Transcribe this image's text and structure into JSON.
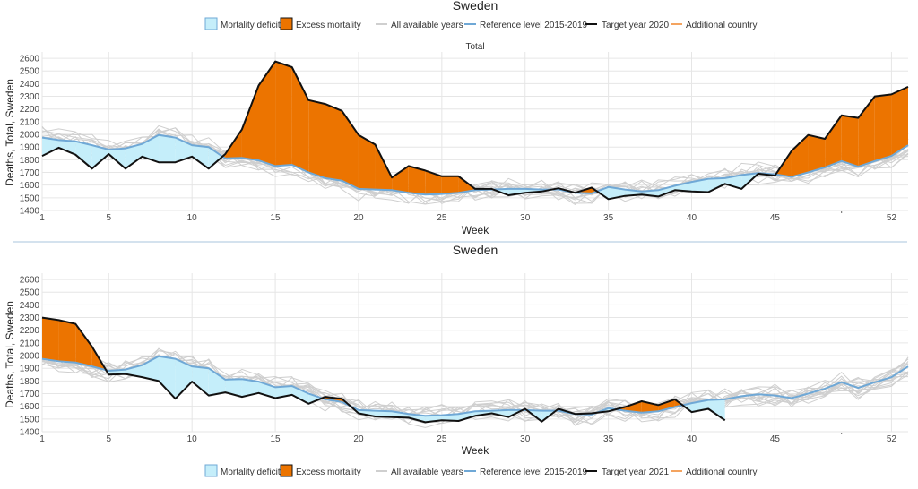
{
  "colors": {
    "deficit": "#c5eefa",
    "excess": "#ec7400",
    "all_years": "#cfcfcf",
    "reference": "#6fa8d6",
    "target": "#111111",
    "additional": "#f4a460",
    "divider": "#a9c4de"
  },
  "chart_data": [
    {
      "type": "line",
      "title": "Sweden",
      "subtitle": "Total",
      "xlabel": "Week",
      "ylabel": "Deaths, Total, Sweden",
      "xlim": [
        1,
        53
      ],
      "ylim": [
        1400,
        2650
      ],
      "x_ticks": [
        "1",
        "5",
        "10",
        "15",
        "20",
        "25",
        "30",
        "35",
        "40",
        "45",
        "52"
      ],
      "y_ticks": [
        "1400",
        "1500",
        "1600",
        "1700",
        "1800",
        "1900",
        "2000",
        "2100",
        "2200",
        "2300",
        "2400",
        "2500",
        "2600"
      ],
      "grid": true,
      "legend": {
        "position": "top",
        "entries": [
          "Mortality deficit",
          "Excess mortality",
          "All available years",
          "Reference level 2015-2019",
          "Target year 2020",
          "Additional country"
        ]
      },
      "series": [
        {
          "name": "Reference level 2015-2019",
          "values": [
            1975,
            1955,
            1945,
            1915,
            1880,
            1890,
            1925,
            1995,
            1975,
            1915,
            1900,
            1810,
            1815,
            1795,
            1750,
            1760,
            1700,
            1655,
            1635,
            1570,
            1565,
            1560,
            1540,
            1525,
            1530,
            1540,
            1560,
            1565,
            1570,
            1570,
            1565,
            1565,
            1540,
            1535,
            1585,
            1565,
            1550,
            1560,
            1595,
            1625,
            1650,
            1655,
            1680,
            1695,
            1685,
            1665,
            1700,
            1740,
            1790,
            1745,
            1790,
            1830,
            1915
          ]
        },
        {
          "name": "Target year 2020",
          "values": [
            1830,
            1895,
            1840,
            1730,
            1845,
            1730,
            1825,
            1780,
            1780,
            1825,
            1730,
            1845,
            2040,
            2385,
            2575,
            2530,
            2270,
            2240,
            2185,
            1995,
            1920,
            1660,
            1750,
            1715,
            1670,
            1670,
            1570,
            1570,
            1520,
            1540,
            1550,
            1575,
            1540,
            1580,
            1490,
            1515,
            1525,
            1510,
            1560,
            1550,
            1545,
            1610,
            1570,
            1690,
            1675,
            1870,
            1995,
            1965,
            2150,
            2130,
            2300,
            2315,
            2375
          ]
        }
      ]
    },
    {
      "type": "line",
      "title": "Sweden",
      "xlabel": "Week",
      "ylabel": "Deaths, Total, Sweden",
      "xlim": [
        1,
        53
      ],
      "ylim": [
        1400,
        2650
      ],
      "x_ticks": [
        "1",
        "5",
        "10",
        "15",
        "20",
        "25",
        "30",
        "35",
        "40",
        "45",
        "52"
      ],
      "y_ticks": [
        "1400",
        "1500",
        "1600",
        "1700",
        "1800",
        "1900",
        "2000",
        "2100",
        "2200",
        "2300",
        "2400",
        "2500",
        "2600"
      ],
      "grid": true,
      "legend": {
        "position": "bottom",
        "entries": [
          "Mortality deficit",
          "Excess mortality",
          "All available years",
          "Reference level 2015-2019",
          "Target year 2021",
          "Additional country"
        ]
      },
      "series": [
        {
          "name": "Reference level 2015-2019",
          "values": [
            1975,
            1955,
            1945,
            1915,
            1880,
            1890,
            1925,
            1995,
            1975,
            1915,
            1900,
            1810,
            1815,
            1795,
            1750,
            1760,
            1700,
            1655,
            1635,
            1570,
            1565,
            1560,
            1540,
            1525,
            1530,
            1540,
            1560,
            1565,
            1570,
            1570,
            1565,
            1565,
            1540,
            1535,
            1585,
            1565,
            1550,
            1560,
            1595,
            1625,
            1650,
            1655,
            1680,
            1695,
            1685,
            1665,
            1700,
            1740,
            1790,
            1745,
            1790,
            1830,
            1915
          ]
        },
        {
          "name": "Target year 2021",
          "values": [
            2300,
            2280,
            2250,
            2070,
            1850,
            1855,
            1830,
            1800,
            1660,
            1795,
            1685,
            1710,
            1675,
            1705,
            1665,
            1690,
            1620,
            1675,
            1660,
            1545,
            1520,
            1515,
            1510,
            1475,
            1490,
            1485,
            1525,
            1545,
            1515,
            1580,
            1480,
            1580,
            1540,
            1545,
            1560,
            1595,
            1640,
            1610,
            1655,
            1555,
            1580,
            1490
          ]
        }
      ]
    }
  ]
}
